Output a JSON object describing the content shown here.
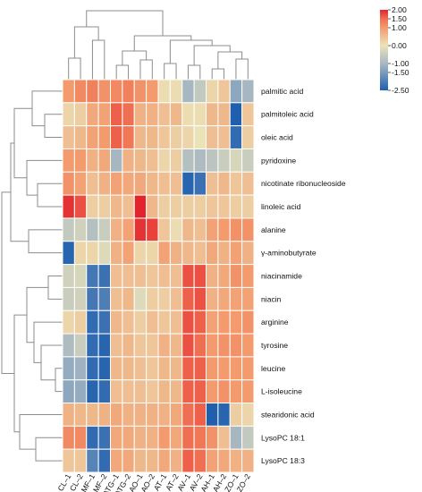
{
  "chart_data": {
    "type": "heatmap",
    "title": "",
    "columns": [
      "CL–1",
      "CL–2",
      "MF–1",
      "MF–2",
      "ATG–1",
      "ATG–2",
      "AO–1",
      "AO–2",
      "AT–1",
      "AT–2",
      "AV–1",
      "AV–2",
      "AH–1",
      "AH–2",
      "ZO–1",
      "ZO–2"
    ],
    "rows": [
      "palmitic acid",
      "palmitoleic acid",
      "oleic acid",
      "pyridoxine",
      "nicotinate ribonucleoside",
      "linoleic acid",
      "alanine",
      "γ-aminobutyrate",
      "niacinamide",
      "niacin",
      "arginine",
      "tyrosine",
      "leucine",
      "L-isoleucine",
      "stearidonic acid",
      "LysoPC 18:1",
      "LysoPC 18:3"
    ],
    "values": [
      [
        1.0,
        1.2,
        1.3,
        1.1,
        1.2,
        1.3,
        1.1,
        1.0,
        0.1,
        0.1,
        -1.0,
        -0.6,
        0.2,
        0.4,
        -1.3,
        -1.0
      ],
      [
        0.2,
        0.3,
        0.8,
        0.9,
        1.6,
        1.5,
        0.7,
        0.7,
        0.5,
        0.6,
        0.1,
        0.1,
        0.6,
        0.6,
        -2.5,
        0.4
      ],
      [
        0.5,
        0.6,
        0.9,
        1.0,
        1.6,
        1.4,
        0.6,
        0.6,
        0.4,
        0.3,
        0.2,
        0.0,
        0.5,
        0.5,
        -2.3,
        0.3
      ],
      [
        1.0,
        1.0,
        0.7,
        0.8,
        -1.0,
        0.7,
        0.6,
        0.5,
        0.2,
        0.3,
        -0.8,
        -0.9,
        -0.7,
        -0.5,
        -0.3,
        -0.5
      ],
      [
        1.1,
        0.9,
        0.5,
        0.7,
        0.9,
        0.8,
        0.8,
        0.6,
        0.5,
        0.5,
        -2.4,
        -2.2,
        0.5,
        0.6,
        0.4,
        0.5
      ],
      [
        1.9,
        1.7,
        0.3,
        0.3,
        0.6,
        0.5,
        2.0,
        0.6,
        0.3,
        0.3,
        0.3,
        0.3,
        0.4,
        0.4,
        0.3,
        0.3
      ],
      [
        -0.6,
        -0.4,
        -0.8,
        -0.5,
        0.7,
        0.9,
        1.9,
        1.8,
        0.4,
        0.1,
        0.6,
        0.5,
        0.9,
        1.0,
        1.1,
        1.1
      ],
      [
        -2.4,
        0.2,
        0.2,
        -0.2,
        0.7,
        0.9,
        0.2,
        0.2,
        0.9,
        0.7,
        0.6,
        0.5,
        0.8,
        0.7,
        0.9,
        0.7
      ],
      [
        -0.4,
        -0.3,
        -2.1,
        -2.2,
        0.5,
        0.5,
        0.5,
        0.4,
        0.5,
        0.5,
        1.7,
        1.7,
        0.7,
        0.8,
        1.1,
        1.0
      ],
      [
        -0.5,
        -0.4,
        -2.1,
        -2.0,
        0.5,
        0.6,
        -0.2,
        0.3,
        0.3,
        0.5,
        1.6,
        1.7,
        0.7,
        0.8,
        0.9,
        0.9
      ],
      [
        0.2,
        0.3,
        -2.3,
        -2.2,
        0.6,
        0.5,
        0.3,
        0.5,
        0.4,
        0.5,
        1.7,
        1.6,
        0.9,
        1.0,
        1.0,
        1.1
      ],
      [
        -0.9,
        -0.5,
        -2.3,
        -2.4,
        0.5,
        0.6,
        0.4,
        0.4,
        0.7,
        0.6,
        1.7,
        1.5,
        1.0,
        1.1,
        1.1,
        1.0
      ],
      [
        -1.2,
        -1.1,
        -2.3,
        -2.4,
        0.6,
        0.6,
        0.5,
        0.4,
        0.6,
        0.6,
        1.6,
        1.6,
        1.0,
        1.0,
        1.0,
        1.0
      ],
      [
        -1.3,
        -1.2,
        -2.4,
        -2.3,
        0.5,
        0.5,
        0.5,
        0.4,
        0.6,
        0.6,
        1.6,
        1.6,
        1.0,
        1.1,
        1.0,
        1.0
      ],
      [
        0.7,
        0.6,
        0.6,
        0.7,
        0.8,
        0.7,
        0.7,
        0.7,
        0.7,
        0.8,
        1.5,
        1.6,
        -2.5,
        -2.4,
        0.3,
        0.2
      ],
      [
        1.2,
        1.2,
        -2.3,
        -2.2,
        0.8,
        0.8,
        0.7,
        0.7,
        1.0,
        0.8,
        1.5,
        1.4,
        1.1,
        0.5,
        -1.0,
        -0.6
      ],
      [
        0.4,
        0.4,
        -1.9,
        -2.3,
        0.8,
        0.8,
        0.6,
        0.6,
        0.8,
        0.7,
        1.6,
        1.5,
        0.9,
        0.8,
        0.7,
        0.7
      ]
    ],
    "color_scale": {
      "min": -2.5,
      "max": 2.0,
      "stops": [
        {
          "value": -2.5,
          "color": "#1f5fae"
        },
        {
          "value": -1.5,
          "color": "#7b9cbc"
        },
        {
          "value": -1.0,
          "color": "#a7b7c2"
        },
        {
          "value": 0.0,
          "color": "#eae3b8"
        },
        {
          "value": 1.0,
          "color": "#f39b6d"
        },
        {
          "value": 1.5,
          "color": "#ef6f52"
        },
        {
          "value": 2.0,
          "color": "#e3242b"
        }
      ]
    },
    "legend": {
      "position": "top-right",
      "tick_labels": [
        "2.00",
        "1.50",
        "1.00",
        "0.00",
        "-1.00",
        "-1.50",
        "-2.50"
      ]
    },
    "column_dendrogram": true,
    "row_dendrogram": true
  }
}
